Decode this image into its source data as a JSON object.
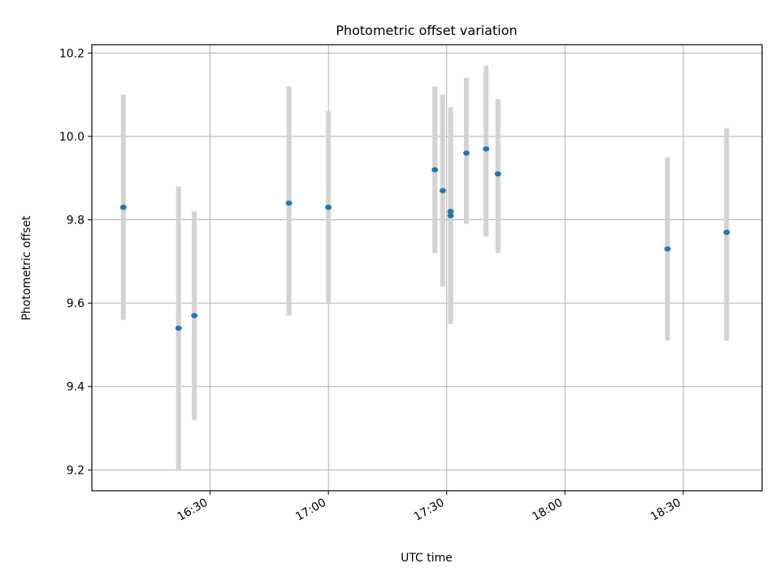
{
  "chart_data": {
    "type": "scatter",
    "title": "Photometric offset variation",
    "xlabel": "UTC time",
    "ylabel": "Photometric offset",
    "x_ticks": [
      "16:30",
      "17:00",
      "17:30",
      "18:00",
      "18:30"
    ],
    "x_range": [
      "16:00",
      "18:50"
    ],
    "y_ticks": [
      "9.2",
      "9.4",
      "9.6",
      "9.8",
      "10.0",
      "10.2"
    ],
    "ylim": [
      9.15,
      10.22
    ],
    "grid": true,
    "colors": {
      "point": "#1f77b4",
      "errorbar": "#d3d3d3",
      "grid": "#b0b0b0"
    },
    "points": [
      {
        "x": "16:08",
        "y": 9.83,
        "yerr_low": 9.56,
        "yerr_high": 10.1
      },
      {
        "x": "16:22",
        "y": 9.54,
        "yerr_low": 9.2,
        "yerr_high": 9.88
      },
      {
        "x": "16:26",
        "y": 9.57,
        "yerr_low": 9.32,
        "yerr_high": 9.82
      },
      {
        "x": "16:50",
        "y": 9.84,
        "yerr_low": 9.57,
        "yerr_high": 10.12
      },
      {
        "x": "17:00",
        "y": 9.83,
        "yerr_low": 9.6,
        "yerr_high": 10.06
      },
      {
        "x": "17:27",
        "y": 9.92,
        "yerr_low": 9.72,
        "yerr_high": 10.12
      },
      {
        "x": "17:29",
        "y": 9.87,
        "yerr_low": 9.64,
        "yerr_high": 10.1
      },
      {
        "x": "17:31",
        "y": 9.82,
        "yerr_low": 9.59,
        "yerr_high": 10.06
      },
      {
        "x": "17:31",
        "y": 9.81,
        "yerr_low": 9.55,
        "yerr_high": 10.07
      },
      {
        "x": "17:35",
        "y": 9.96,
        "yerr_low": 9.79,
        "yerr_high": 10.14
      },
      {
        "x": "17:40",
        "y": 9.97,
        "yerr_low": 9.76,
        "yerr_high": 10.17
      },
      {
        "x": "17:43",
        "y": 9.91,
        "yerr_low": 9.72,
        "yerr_high": 10.09
      },
      {
        "x": "18:26",
        "y": 9.73,
        "yerr_low": 9.51,
        "yerr_high": 9.95
      },
      {
        "x": "18:41",
        "y": 9.77,
        "yerr_low": 9.51,
        "yerr_high": 10.02
      }
    ]
  }
}
